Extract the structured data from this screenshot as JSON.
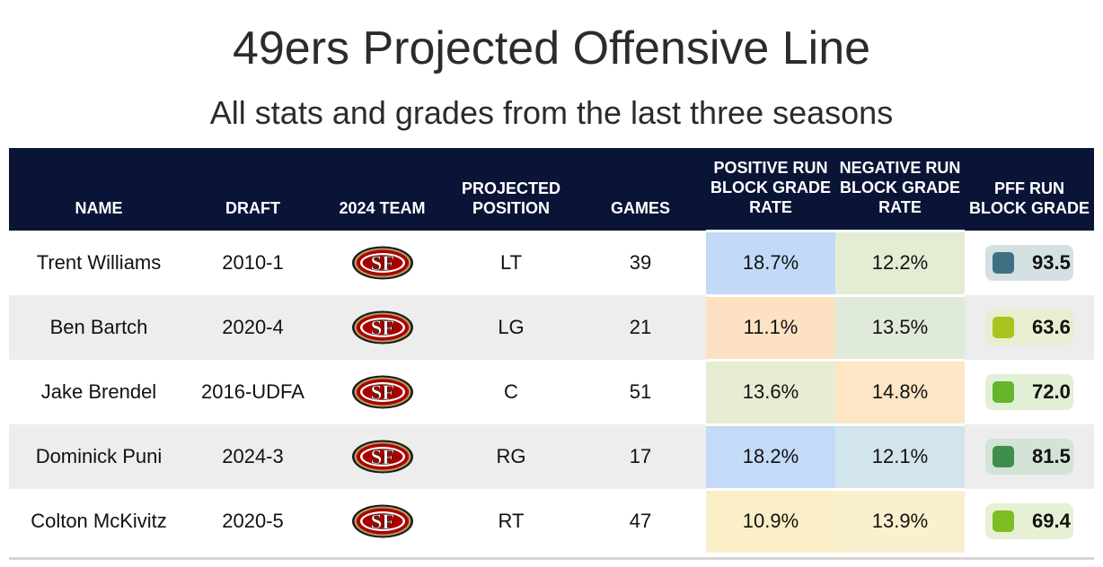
{
  "title": "49ers Projected Offensive Line",
  "subtitle": "All stats and grades from the last three seasons",
  "columns": {
    "name": "NAME",
    "draft": "DRAFT",
    "team": "2024 TEAM",
    "position": "PROJECTED POSITION",
    "games": "GAMES",
    "positive": "POSITIVE RUN BLOCK GRADE RATE",
    "negative": "NEGATIVE RUN BLOCK GRADE RATE",
    "grade": "PFF RUN BLOCK GRADE"
  },
  "team_logo_icon": "sf-49ers-logo-icon",
  "players": [
    {
      "name": "Trent Williams",
      "draft": "2010-1",
      "position": "LT",
      "games": "39",
      "positive": "18.7%",
      "positive_color": "#c2daf8",
      "negative": "12.2%",
      "negative_color": "#e5ecd4",
      "grade": "93.5",
      "grade_swatch": "#3e7083",
      "grade_pill": "#d5e0e3"
    },
    {
      "name": "Ben Bartch",
      "draft": "2020-4",
      "position": "LG",
      "games": "21",
      "positive": "11.1%",
      "positive_color": "#fde1c3",
      "negative": "13.5%",
      "negative_color": "#e0eadb",
      "grade": "63.6",
      "grade_swatch": "#a9c41f",
      "grade_pill": "#e8eed0"
    },
    {
      "name": "Jake Brendel",
      "draft": "2016-UDFA",
      "position": "C",
      "games": "51",
      "positive": "13.6%",
      "positive_color": "#e6edd2",
      "negative": "14.8%",
      "negative_color": "#fde6c6",
      "grade": "72.0",
      "grade_swatch": "#63b52b",
      "grade_pill": "#e1efd6"
    },
    {
      "name": "Dominick Puni",
      "draft": "2024-3",
      "position": "RG",
      "games": "17",
      "positive": "18.2%",
      "positive_color": "#c4dbf7",
      "negative": "12.1%",
      "negative_color": "#d2e4ec",
      "grade": "81.5",
      "grade_swatch": "#3f8f4c",
      "grade_pill": "#d3e3d5"
    },
    {
      "name": "Colton McKivitz",
      "draft": "2020-5",
      "position": "RT",
      "games": "47",
      "positive": "10.9%",
      "positive_color": "#fbefc8",
      "negative": "13.9%",
      "negative_color": "#fbf0cd",
      "grade": "69.4",
      "grade_swatch": "#7ebd22",
      "grade_pill": "#e6f0d4"
    }
  ]
}
